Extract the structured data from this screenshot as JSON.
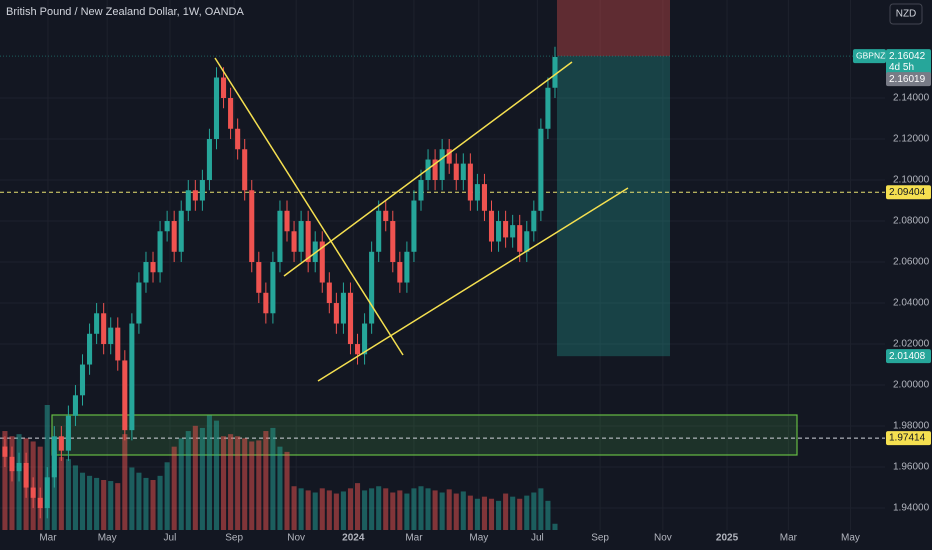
{
  "chart_data": {
    "type": "candlestick",
    "title": "British Pound / New Zealand Dollar, 1W, OANDA",
    "currency": "NZD",
    "symbol": "GBPNZD",
    "countdown": "4d 5h",
    "last_price": {
      "value": 2.16042,
      "label": "2.16042"
    },
    "bid_price": {
      "value": 2.16019,
      "label": "2.16019"
    },
    "levels": [
      {
        "value": 2.09404,
        "label": "2.09404"
      },
      {
        "value": 2.01408,
        "label": "2.01408"
      },
      {
        "value": 1.97414,
        "label": "1.97414"
      }
    ],
    "up_color": "#26a69a",
    "down_color": "#ef5350",
    "x": [
      0,
      1,
      2,
      3,
      4,
      5,
      6,
      7,
      8,
      9,
      10,
      11,
      12,
      13,
      14,
      15,
      16,
      17,
      18,
      19,
      20,
      21,
      22,
      23,
      24,
      25,
      26,
      27,
      28,
      29,
      30,
      31,
      32,
      33,
      34,
      35,
      36,
      37,
      38,
      39,
      40,
      41,
      42,
      43,
      44,
      45,
      46,
      47,
      48,
      49,
      50,
      51,
      52,
      53,
      54,
      55,
      56,
      57,
      58,
      59,
      60,
      61,
      62,
      63,
      64,
      65,
      66,
      67,
      68,
      69,
      70,
      71,
      72,
      73,
      74,
      75,
      76,
      77,
      78
    ],
    "open": [
      1.97,
      1.965,
      1.958,
      1.962,
      1.95,
      1.945,
      1.94,
      1.955,
      1.975,
      1.968,
      1.985,
      1.995,
      2.01,
      2.025,
      2.035,
      2.02,
      2.028,
      2.012,
      1.978,
      2.03,
      2.05,
      2.06,
      2.055,
      2.075,
      2.08,
      2.065,
      2.085,
      2.095,
      2.09,
      2.1,
      2.12,
      2.15,
      2.14,
      2.125,
      2.115,
      2.095,
      2.06,
      2.045,
      2.035,
      2.06,
      2.085,
      2.075,
      2.065,
      2.08,
      2.06,
      2.07,
      2.05,
      2.04,
      2.03,
      2.045,
      2.02,
      2.015,
      2.03,
      2.065,
      2.085,
      2.08,
      2.06,
      2.05,
      2.065,
      2.09,
      2.1,
      2.11,
      2.1,
      2.115,
      2.108,
      2.1,
      2.108,
      2.09,
      2.098,
      2.085,
      2.07,
      2.08,
      2.072,
      2.078,
      2.065,
      2.075,
      2.085,
      2.125,
      2.145
    ],
    "high": [
      1.975,
      1.97,
      1.967,
      1.967,
      1.955,
      1.95,
      1.96,
      1.98,
      1.98,
      1.99,
      2.0,
      2.015,
      2.03,
      2.04,
      2.04,
      2.033,
      2.033,
      2.017,
      2.035,
      2.055,
      2.065,
      2.065,
      2.08,
      2.085,
      2.085,
      2.09,
      2.1,
      2.1,
      2.105,
      2.125,
      2.155,
      2.155,
      2.145,
      2.13,
      2.12,
      2.1,
      2.065,
      2.05,
      2.065,
      2.09,
      2.09,
      2.08,
      2.085,
      2.085,
      2.075,
      2.075,
      2.055,
      2.045,
      2.05,
      2.05,
      2.025,
      2.035,
      2.07,
      2.09,
      2.09,
      2.085,
      2.065,
      2.07,
      2.095,
      2.105,
      2.115,
      2.115,
      2.12,
      2.12,
      2.113,
      2.113,
      2.113,
      2.103,
      2.103,
      2.09,
      2.085,
      2.085,
      2.083,
      2.083,
      2.08,
      2.09,
      2.13,
      2.15,
      2.165
    ],
    "low": [
      1.96,
      1.953,
      1.953,
      1.945,
      1.94,
      1.935,
      1.935,
      1.95,
      1.963,
      1.963,
      1.98,
      1.99,
      2.005,
      2.02,
      2.015,
      2.015,
      2.007,
      1.973,
      1.973,
      2.025,
      2.045,
      2.05,
      2.05,
      2.07,
      2.06,
      2.06,
      2.08,
      2.085,
      2.085,
      2.095,
      2.115,
      2.135,
      2.12,
      2.11,
      2.09,
      2.055,
      2.04,
      2.03,
      2.03,
      2.055,
      2.07,
      2.06,
      2.06,
      2.055,
      2.055,
      2.045,
      2.035,
      2.025,
      2.025,
      2.015,
      2.01,
      2.01,
      2.025,
      2.06,
      2.075,
      2.055,
      2.045,
      2.045,
      2.06,
      2.085,
      2.095,
      2.095,
      2.095,
      2.103,
      2.095,
      2.095,
      2.085,
      2.085,
      2.08,
      2.065,
      2.065,
      2.067,
      2.067,
      2.06,
      2.06,
      2.07,
      2.08,
      2.12,
      2.14
    ],
    "close": [
      1.965,
      1.958,
      1.962,
      1.95,
      1.945,
      1.94,
      1.955,
      1.975,
      1.968,
      1.985,
      1.995,
      2.01,
      2.025,
      2.035,
      2.02,
      2.028,
      2.012,
      1.978,
      2.03,
      2.05,
      2.06,
      2.055,
      2.075,
      2.08,
      2.065,
      2.085,
      2.095,
      2.09,
      2.1,
      2.12,
      2.15,
      2.14,
      2.125,
      2.115,
      2.095,
      2.06,
      2.045,
      2.035,
      2.06,
      2.085,
      2.075,
      2.065,
      2.08,
      2.06,
      2.07,
      2.05,
      2.04,
      2.03,
      2.045,
      2.02,
      2.015,
      2.03,
      2.065,
      2.085,
      2.08,
      2.06,
      2.05,
      2.065,
      2.09,
      2.1,
      2.11,
      2.1,
      2.115,
      2.108,
      2.1,
      2.108,
      2.09,
      2.098,
      2.085,
      2.07,
      2.08,
      2.072,
      2.078,
      2.065,
      2.075,
      2.085,
      2.125,
      2.145,
      2.16
    ],
    "volume": [
      95,
      90,
      92,
      88,
      85,
      80,
      120,
      75,
      70,
      68,
      62,
      55,
      52,
      50,
      48,
      47,
      45,
      92,
      60,
      55,
      50,
      48,
      52,
      65,
      80,
      88,
      95,
      100,
      98,
      110,
      105,
      90,
      92,
      90,
      88,
      85,
      86,
      95,
      98,
      80,
      75,
      42,
      40,
      38,
      36,
      40,
      38,
      35,
      37,
      40,
      45,
      38,
      40,
      42,
      40,
      36,
      38,
      35,
      40,
      42,
      40,
      38,
      36,
      39,
      35,
      37,
      33,
      30,
      32,
      30,
      28,
      35,
      32,
      30,
      33,
      36,
      40,
      28,
      6
    ],
    "xlim": [
      -0.7,
      124.8
    ],
    "ylim": [
      1.9293,
      2.1878
    ],
    "xticks": [
      {
        "value": 6.1,
        "label": "Mar"
      },
      {
        "value": 14.5,
        "label": "May"
      },
      {
        "value": 23.4,
        "label": "Jul"
      },
      {
        "value": 32.5,
        "label": "Sep"
      },
      {
        "value": 41.3,
        "label": "Nov"
      },
      {
        "value": 49.4,
        "label": "2024"
      },
      {
        "value": 58.0,
        "label": "Mar"
      },
      {
        "value": 67.2,
        "label": "May"
      },
      {
        "value": 75.5,
        "label": "Jul"
      },
      {
        "value": 84.4,
        "label": "Sep"
      },
      {
        "value": 93.3,
        "label": "Nov"
      },
      {
        "value": 102.4,
        "label": "2025"
      },
      {
        "value": 111.1,
        "label": "Mar"
      },
      {
        "value": 119.9,
        "label": "May"
      }
    ],
    "yticks": [
      {
        "value": 1.94,
        "label": "1.94000"
      },
      {
        "value": 1.96,
        "label": "1.96000"
      },
      {
        "value": 1.98,
        "label": "1.98000"
      },
      {
        "value": 2.0,
        "label": "2.00000"
      },
      {
        "value": 2.02,
        "label": "2.02000"
      },
      {
        "value": 2.04,
        "label": "2.04000"
      },
      {
        "value": 2.06,
        "label": "2.06000"
      },
      {
        "value": 2.08,
        "label": "2.08000"
      },
      {
        "value": 2.1,
        "label": "2.10000"
      },
      {
        "value": 2.12,
        "label": "2.12000"
      },
      {
        "value": 2.14,
        "label": "2.14000"
      }
    ],
    "grid": true
  }
}
